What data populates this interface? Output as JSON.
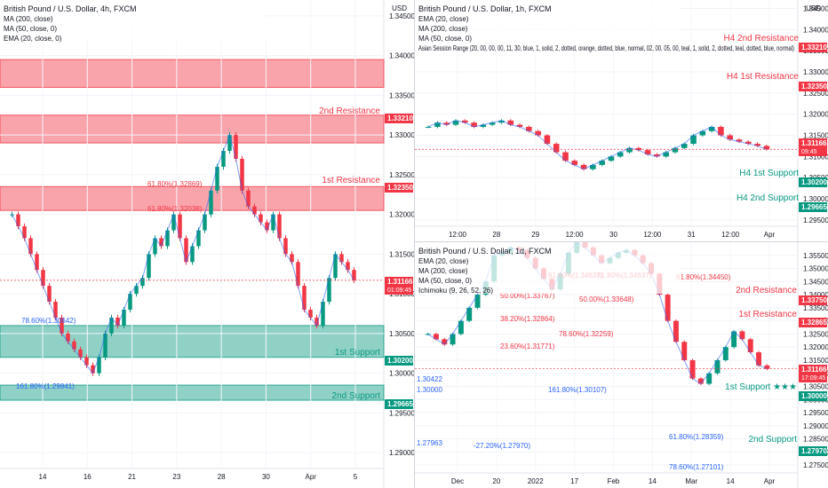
{
  "chart_data": [
    {
      "type": "candlestick",
      "title": "British Pound / U.S. Dollar, 4h, FXCM",
      "indicators": [
        "MA (200, close)",
        "MA (50, close, 0)",
        "EMA (20, close, 0)"
      ],
      "axis_label": "USD",
      "x_ticks": [
        "14",
        "16",
        "21",
        "23",
        "28",
        "30",
        "Apr",
        "5"
      ],
      "y_ticks": [
        "1.34500",
        "1.34000",
        "1.33500",
        "1.33000",
        "1.32500",
        "1.32000",
        "1.31500",
        "1.31000",
        "1.30500",
        "1.30000",
        "1.29500",
        "1.29000"
      ],
      "ylim": [
        1.288,
        1.347
      ],
      "price_badges": [
        {
          "value": "1.33210",
          "color": "#f23645"
        },
        {
          "value": "1.32350",
          "color": "#f23645"
        },
        {
          "value": "1.31166",
          "sub": "01:09:45",
          "color": "#f23645"
        },
        {
          "value": "1.30200",
          "color": "#089981"
        },
        {
          "value": "1.29665",
          "color": "#089981"
        }
      ],
      "zone_labels": [
        {
          "text": "2nd Resistance",
          "color": "#f23645"
        },
        {
          "text": "1st Resistance",
          "color": "#f23645"
        },
        {
          "text": "1st Support",
          "color": "#089981"
        },
        {
          "text": "2nd Support",
          "color": "#089981"
        }
      ],
      "fib_labels": [
        {
          "text": "61.80%(1.32869)",
          "color": "#f23645"
        },
        {
          "text": "61.80%(1.32038)",
          "color": "#f23645"
        },
        {
          "text": "78.60%(1.30642)",
          "color": "#2962ff"
        },
        {
          "text": "161.80%(1.29841)",
          "color": "#2962ff"
        }
      ],
      "zones": [
        {
          "from": 1.336,
          "to": 1.3395,
          "color": "#f23645"
        },
        {
          "from": 1.329,
          "to": 1.3325,
          "color": "#f23645"
        },
        {
          "from": 1.3205,
          "to": 1.3235,
          "color": "#f23645"
        },
        {
          "from": 1.302,
          "to": 1.306,
          "color": "#089981"
        },
        {
          "from": 1.2966,
          "to": 1.2985,
          "color": "#089981"
        }
      ],
      "series": [
        {
          "name": "",
          "values": [
            1.32,
            1.3185,
            1.317,
            1.315,
            1.313,
            1.311,
            1.309,
            1.307,
            1.305,
            1.304,
            1.303,
            1.302,
            1.301,
            1.3,
            1.302,
            1.305,
            1.307,
            1.306,
            1.308,
            1.31,
            1.311,
            1.312,
            1.315,
            1.317,
            1.316,
            1.318,
            1.32,
            1.317,
            1.314,
            1.316,
            1.318,
            1.32,
            1.323,
            1.326,
            1.328,
            1.33,
            1.327,
            1.323,
            1.321,
            1.32,
            1.319,
            1.318,
            1.32,
            1.317,
            1.315,
            1.314,
            1.311,
            1.308,
            1.307,
            1.306,
            1.309,
            1.312,
            1.315,
            1.314,
            1.313,
            1.3117
          ]
        }
      ]
    },
    {
      "type": "candlestick",
      "title": "British Pound / U.S. Dollar, 1h, FXCM",
      "indicators": [
        "EMA (20, close)",
        "MA (200, close)",
        "MA (50, close, 0)",
        "Asian Session Range (20, 00, 00, 00, 11, 30, blue, 1, solid, 2, dotted, orange, dotted, blue, normal, 02, 00, 05, 00, teal, 1, solid, 2, dotted, teal, dotted, blue, normal)"
      ],
      "axis_label": "USD",
      "x_ticks": [
        "12:00",
        "28",
        "29",
        "12:00",
        "30",
        "12:00",
        "31",
        "12:00",
        "Apr"
      ],
      "y_ticks": [
        "1.34500",
        "1.34000",
        "1.33500",
        "1.33000",
        "1.32500",
        "1.32000",
        "1.31500",
        "1.31000",
        "1.30500",
        "1.30000",
        "1.29500"
      ],
      "ylim": [
        1.2935,
        1.347
      ],
      "price_badges": [
        {
          "value": "1.33210",
          "color": "#f23645"
        },
        {
          "value": "1.32350",
          "color": "#f23645"
        },
        {
          "value": "1.31166",
          "sub": "09:45",
          "color": "#f23645"
        },
        {
          "value": "1.30200",
          "color": "#089981"
        },
        {
          "value": "1.29665",
          "color": "#089981"
        }
      ],
      "zone_labels": [
        {
          "text": "H4 2nd Resistance",
          "color": "#f23645"
        },
        {
          "text": "H4 1st Resistance",
          "color": "#f23645"
        },
        {
          "text": "H4 1st Support",
          "color": "#089981"
        },
        {
          "text": "H4 2nd Support",
          "color": "#089981"
        }
      ],
      "series": [
        {
          "name": "",
          "values": [
            1.317,
            1.318,
            1.3175,
            1.3185,
            1.318,
            1.317,
            1.3175,
            1.318,
            1.3185,
            1.3175,
            1.317,
            1.316,
            1.315,
            1.313,
            1.311,
            1.309,
            1.308,
            1.307,
            1.308,
            1.309,
            1.31,
            1.311,
            1.312,
            1.3115,
            1.3105,
            1.31,
            1.311,
            1.312,
            1.313,
            1.315,
            1.316,
            1.317,
            1.315,
            1.314,
            1.3135,
            1.313,
            1.3125,
            1.3117
          ]
        }
      ]
    },
    {
      "type": "candlestick",
      "title": "British Pound / U.S. Dollar, 1d, FXCM",
      "indicators": [
        "EMA (20, close)",
        "MA (200, close)",
        "MA (50, close, 0)",
        "Ichimoku (9, 26, 52, 26)"
      ],
      "axis_label": "",
      "x_ticks": [
        "Dec",
        "20",
        "2022",
        "17",
        "Feb",
        "14",
        "Mar",
        "14",
        "Apr"
      ],
      "y_ticks": [
        "1.35500",
        "1.35000",
        "1.34500",
        "1.34000",
        "1.33500",
        "1.33000",
        "1.32500",
        "1.32000",
        "1.31500",
        "1.31000",
        "1.30500",
        "1.30000",
        "1.29500",
        "1.29000",
        "1.28500",
        "1.28000",
        "1.27500"
      ],
      "ylim": [
        1.272,
        1.36
      ],
      "price_badges": [
        {
          "value": "1.33750",
          "color": "#f23645"
        },
        {
          "value": "1.32865",
          "color": "#f23645"
        },
        {
          "value": "1.31166",
          "sub": "17:09:45",
          "color": "#f23645"
        },
        {
          "value": "1.30000",
          "color": "#089981"
        },
        {
          "value": "1.27970",
          "color": "#089981"
        }
      ],
      "zone_labels": [
        {
          "text": "2nd Resistance",
          "color": "#f23645"
        },
        {
          "text": "1st Resistance",
          "color": "#f23645"
        },
        {
          "text": "1st Support ★★★",
          "color": "#089981"
        },
        {
          "text": "2nd Support",
          "color": "#089981"
        }
      ],
      "fib_labels": [
        {
          "text": "61.80%(1.34637)",
          "color": "#f23645"
        },
        {
          "text": "61.80%(1.34637)",
          "color": "#f23645"
        },
        {
          "text": "50.00%(1.33767)",
          "color": "#f23645"
        },
        {
          "text": "50.00%(1.33648)",
          "color": "#f23645"
        },
        {
          "text": "38.20%(1.32864)",
          "color": "#f23645"
        },
        {
          "text": "78.60%(1.32259)",
          "color": "#f23645"
        },
        {
          "text": "23.60%(1.31771)",
          "color": "#f23645"
        },
        {
          "text": "61.80%(1.34450)",
          "color": "#f23645"
        },
        {
          "text": "1.30422",
          "color": "#2962ff"
        },
        {
          "text": "1.30000",
          "color": "#2962ff"
        },
        {
          "text": "161.80%(1.30107)",
          "color": "#2962ff"
        },
        {
          "text": "1.27963",
          "color": "#2962ff"
        },
        {
          "text": "-27.20%(1.27970)",
          "color": "#2962ff"
        },
        {
          "text": "61.80%(1.28359)",
          "color": "#2962ff"
        },
        {
          "text": "78.60%(1.27101)",
          "color": "#2962ff"
        }
      ],
      "series": [
        {
          "name": "",
          "values": [
            1.325,
            1.323,
            1.321,
            1.325,
            1.33,
            1.335,
            1.34,
            1.345,
            1.355,
            1.356,
            1.358,
            1.357,
            1.354,
            1.35,
            1.346,
            1.342,
            1.348,
            1.356,
            1.36,
            1.358,
            1.355,
            1.352,
            1.354,
            1.356,
            1.357,
            1.355,
            1.352,
            1.348,
            1.34,
            1.33,
            1.322,
            1.315,
            1.308,
            1.306,
            1.31,
            1.315,
            1.32,
            1.326,
            1.323,
            1.318,
            1.313,
            1.3117
          ]
        }
      ]
    }
  ]
}
